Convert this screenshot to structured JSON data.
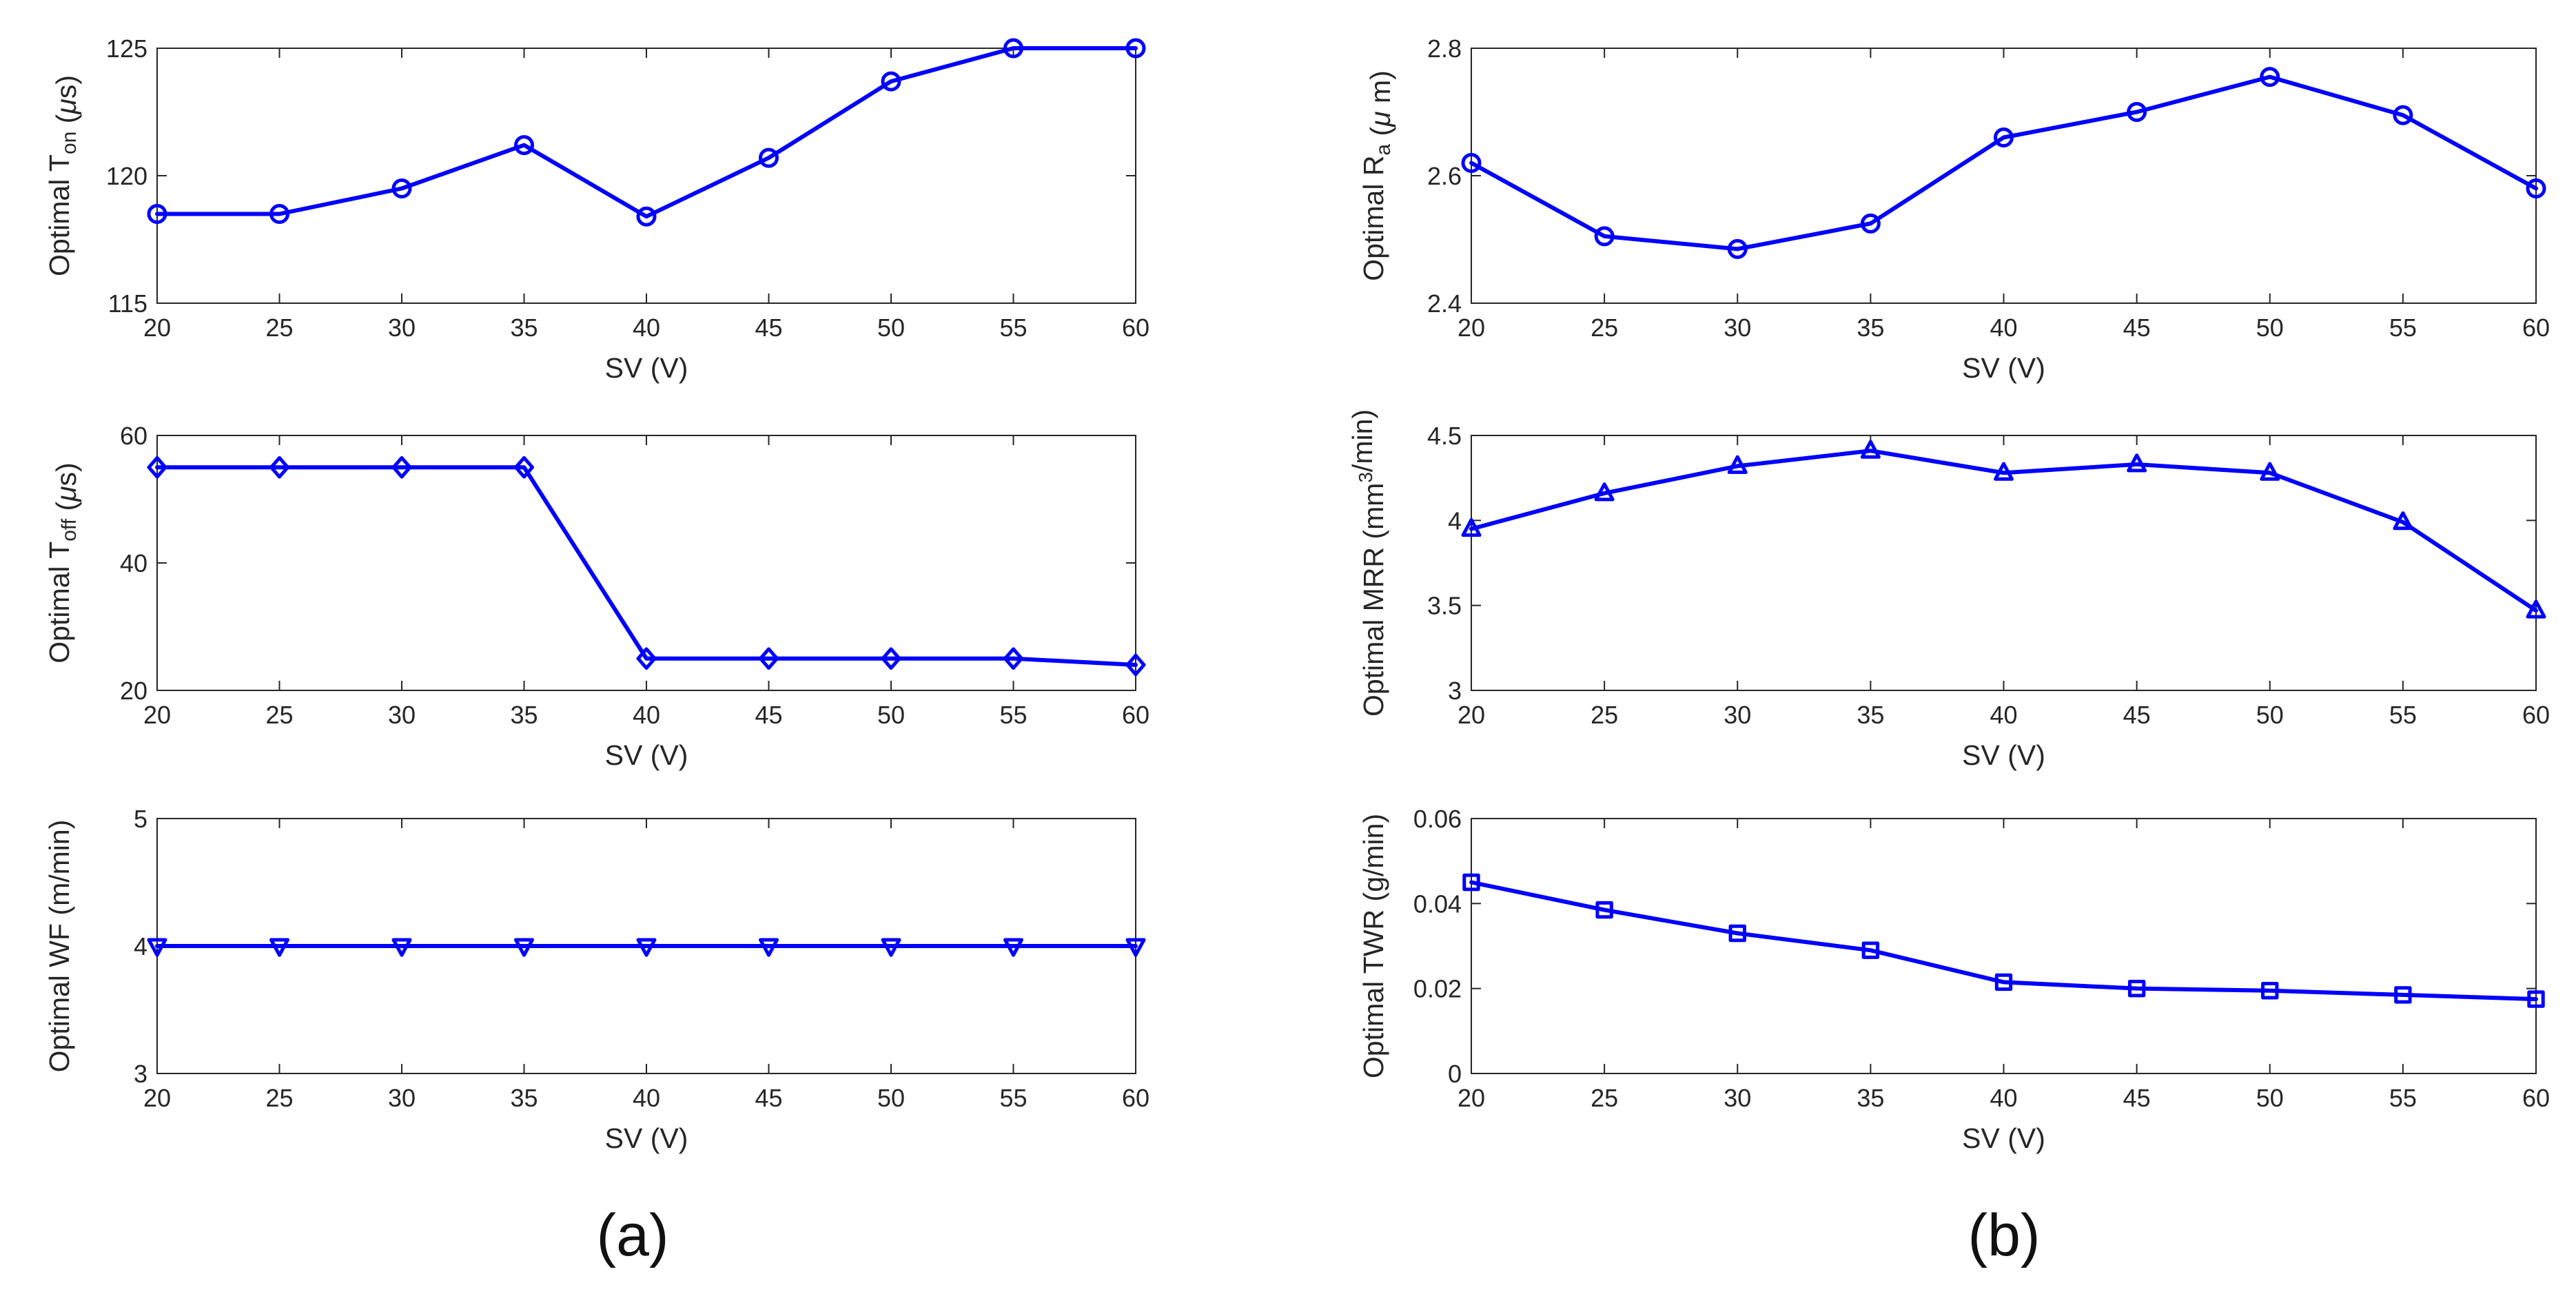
{
  "figure": {
    "captions": [
      "(a)",
      "(b)"
    ],
    "line_color": "#0000ff",
    "axis_color": "#262626"
  },
  "chart_data": [
    {
      "type": "line",
      "panel": "a",
      "marker": "circle",
      "x": [
        20,
        25,
        30,
        35,
        40,
        45,
        50,
        55,
        60
      ],
      "values": [
        118.5,
        118.5,
        119.5,
        121.2,
        118.4,
        120.7,
        123.7,
        125,
        125
      ],
      "xlabel": "SV (V)",
      "ylabel_parts": [
        [
          "Optimal T",
          ""
        ],
        [
          "on",
          "sub"
        ],
        [
          " (",
          ""
        ],
        [
          "μ",
          "i"
        ],
        [
          "s)",
          ""
        ]
      ],
      "xlim": [
        20,
        60
      ],
      "ylim": [
        115,
        125
      ],
      "xticks": [
        20,
        25,
        30,
        35,
        40,
        45,
        50,
        55,
        60
      ],
      "yticks": [
        "115",
        "120",
        "125"
      ],
      "grid": false
    },
    {
      "type": "line",
      "panel": "b",
      "marker": "circle",
      "x": [
        20,
        25,
        30,
        35,
        40,
        45,
        50,
        55,
        60
      ],
      "values": [
        2.62,
        2.505,
        2.485,
        2.525,
        2.66,
        2.7,
        2.755,
        2.695,
        2.58
      ],
      "xlabel": "SV (V)",
      "ylabel_parts": [
        [
          "Optimal R",
          ""
        ],
        [
          "a",
          "sub"
        ],
        [
          " (",
          ""
        ],
        [
          "μ",
          "i"
        ],
        [
          " m)",
          ""
        ]
      ],
      "xlim": [
        20,
        60
      ],
      "ylim": [
        2.4,
        2.8
      ],
      "xticks": [
        20,
        25,
        30,
        35,
        40,
        45,
        50,
        55,
        60
      ],
      "yticks": [
        "2.4",
        "2.6",
        "2.8"
      ],
      "grid": false
    },
    {
      "type": "line",
      "panel": "a",
      "marker": "diamond",
      "x": [
        20,
        25,
        30,
        35,
        40,
        45,
        50,
        55,
        60
      ],
      "values": [
        55,
        55,
        55,
        55,
        25,
        25,
        25,
        25,
        24
      ],
      "xlabel": "SV (V)",
      "ylabel_parts": [
        [
          "Optimal T",
          ""
        ],
        [
          "off",
          "sub"
        ],
        [
          " (",
          ""
        ],
        [
          "μ",
          "i"
        ],
        [
          "s)",
          ""
        ]
      ],
      "xlim": [
        20,
        60
      ],
      "ylim": [
        20,
        60
      ],
      "xticks": [
        20,
        25,
        30,
        35,
        40,
        45,
        50,
        55,
        60
      ],
      "yticks": [
        "20",
        "40",
        "60"
      ],
      "grid": false
    },
    {
      "type": "line",
      "panel": "b",
      "marker": "triangle-up",
      "x": [
        20,
        25,
        30,
        35,
        40,
        45,
        50,
        55,
        60
      ],
      "values": [
        3.95,
        4.16,
        4.32,
        4.41,
        4.28,
        4.33,
        4.28,
        3.99,
        3.47
      ],
      "xlabel": "SV (V)",
      "ylabel_parts": [
        [
          "Optimal MRR (mm",
          ""
        ],
        [
          "3",
          "sup"
        ],
        [
          "/min)",
          ""
        ]
      ],
      "xlim": [
        20,
        60
      ],
      "ylim": [
        3,
        4.5
      ],
      "xticks": [
        20,
        25,
        30,
        35,
        40,
        45,
        50,
        55,
        60
      ],
      "yticks": [
        "3",
        "3.5",
        "4",
        "4.5"
      ],
      "grid": false
    },
    {
      "type": "line",
      "panel": "a",
      "marker": "triangle-down",
      "x": [
        20,
        25,
        30,
        35,
        40,
        45,
        50,
        55,
        60
      ],
      "values": [
        4,
        4,
        4,
        4,
        4,
        4,
        4,
        4,
        4
      ],
      "xlabel": "SV (V)",
      "ylabel_parts": [
        [
          "Optimal WF (m/min)",
          ""
        ]
      ],
      "xlim": [
        20,
        60
      ],
      "ylim": [
        3,
        5
      ],
      "xticks": [
        20,
        25,
        30,
        35,
        40,
        45,
        50,
        55,
        60
      ],
      "yticks": [
        "3",
        "4",
        "5"
      ],
      "grid": false
    },
    {
      "type": "line",
      "panel": "b",
      "marker": "square",
      "x": [
        20,
        25,
        30,
        35,
        40,
        45,
        50,
        55,
        60
      ],
      "values": [
        0.045,
        0.0385,
        0.033,
        0.029,
        0.0215,
        0.02,
        0.0195,
        0.0185,
        0.0175
      ],
      "xlabel": "SV (V)",
      "ylabel_parts": [
        [
          "Optimal TWR (g/min)",
          ""
        ]
      ],
      "xlim": [
        20,
        60
      ],
      "ylim": [
        0,
        0.06
      ],
      "xticks": [
        20,
        25,
        30,
        35,
        40,
        45,
        50,
        55,
        60
      ],
      "yticks": [
        "0",
        "0.02",
        "0.04",
        "0.06"
      ],
      "grid": false
    }
  ]
}
